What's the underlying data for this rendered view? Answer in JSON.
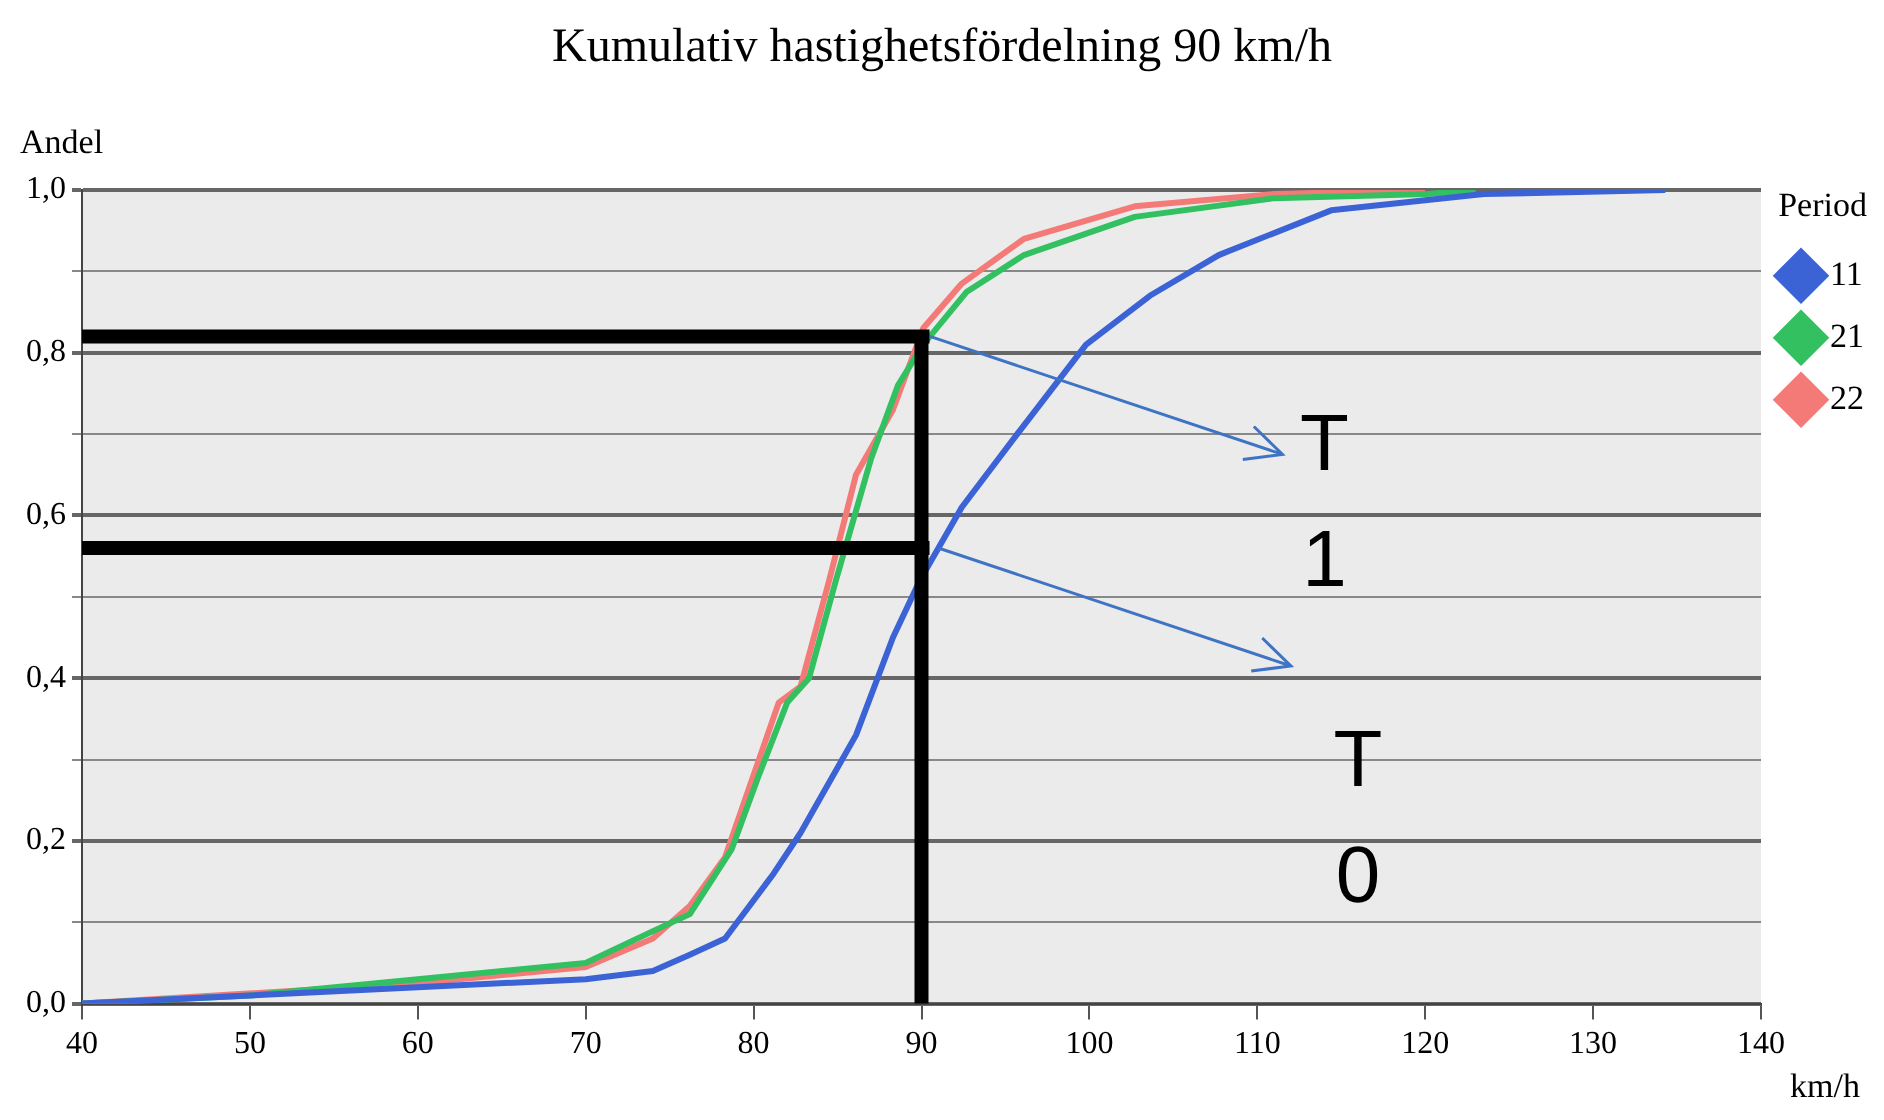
{
  "chart_data": {
    "type": "line",
    "title": "Kumulativ hastighetsfördelning 90 km/h",
    "xlabel": "km/h",
    "ylabel": "Andel",
    "legend_title": "Period",
    "legend": "right",
    "grid": "y",
    "line_style": "solid",
    "marker": "none",
    "xlim": [
      40,
      140
    ],
    "xticks": [
      40,
      50,
      60,
      70,
      80,
      90,
      100,
      110,
      120,
      130,
      140
    ],
    "ylim": [
      0,
      1
    ],
    "yticks": [
      {
        "value": 0,
        "label": "0,0"
      },
      {
        "value": 0.1,
        "label": null
      },
      {
        "value": 0.2,
        "label": "0,2"
      },
      {
        "value": 0.3,
        "label": null
      },
      {
        "value": 0.4,
        "label": "0,4"
      },
      {
        "value": 0.5,
        "label": null
      },
      {
        "value": 0.6,
        "label": "0,6"
      },
      {
        "value": 0.7,
        "label": null
      },
      {
        "value": 0.8,
        "label": "0,8"
      },
      {
        "value": 0.9,
        "label": null
      },
      {
        "value": 1,
        "label": "1,0"
      }
    ],
    "series": [
      {
        "name": "11",
        "color": "#3b63d6",
        "x": [
          40,
          50,
          60,
          70,
          74,
          76.2,
          78.3,
          81.2,
          82.8,
          86.1,
          88.3,
          89.9,
          92.4,
          95.7,
          99.8,
          103.6,
          107.7,
          114.4,
          123.5,
          134.3
        ],
        "values": [
          0,
          0.01,
          0.02,
          0.03,
          0.04,
          0.06,
          0.08,
          0.16,
          0.21,
          0.33,
          0.45,
          0.52,
          0.61,
          0.7,
          0.81,
          0.87,
          0.92,
          0.975,
          0.995,
          1
        ]
      },
      {
        "name": "21",
        "color": "#33c060",
        "x": [
          40,
          50,
          60,
          70,
          74.1,
          76.2,
          78.7,
          80.3,
          82,
          83.3,
          84.9,
          87,
          88.6,
          90.1,
          92.7,
          96.1,
          102.7,
          111,
          120.1,
          123
        ],
        "values": [
          0,
          0.01,
          0.03,
          0.05,
          0.09,
          0.11,
          0.19,
          0.28,
          0.37,
          0.4,
          0.52,
          0.67,
          0.76,
          0.81,
          0.875,
          0.92,
          0.967,
          0.99,
          0.995,
          1
        ]
      },
      {
        "name": "22",
        "color": "#f47a78",
        "x": [
          40,
          60,
          70,
          74,
          76.2,
          78.3,
          81.5,
          82.8,
          84.5,
          86.1,
          88.3,
          90.1,
          92.4,
          96.1,
          102.7,
          111,
          120
        ],
        "values": [
          0,
          0.025,
          0.045,
          0.08,
          0.12,
          0.18,
          0.37,
          0.39,
          0.52,
          0.65,
          0.73,
          0.83,
          0.885,
          0.94,
          0.98,
          0.995,
          1
        ]
      }
    ],
    "ref_lines": [
      {
        "axis": "y",
        "value": 0.82,
        "color": "#000000"
      },
      {
        "axis": "y",
        "value": 0.56,
        "color": "#000000"
      },
      {
        "axis": "x",
        "value": 90,
        "color": "#000000"
      }
    ],
    "annotations": [
      {
        "text": "T\n1",
        "x": 90.5,
        "y": 0.82
      },
      {
        "text": "T\n0",
        "x": 91,
        "y": 0.56
      }
    ]
  }
}
